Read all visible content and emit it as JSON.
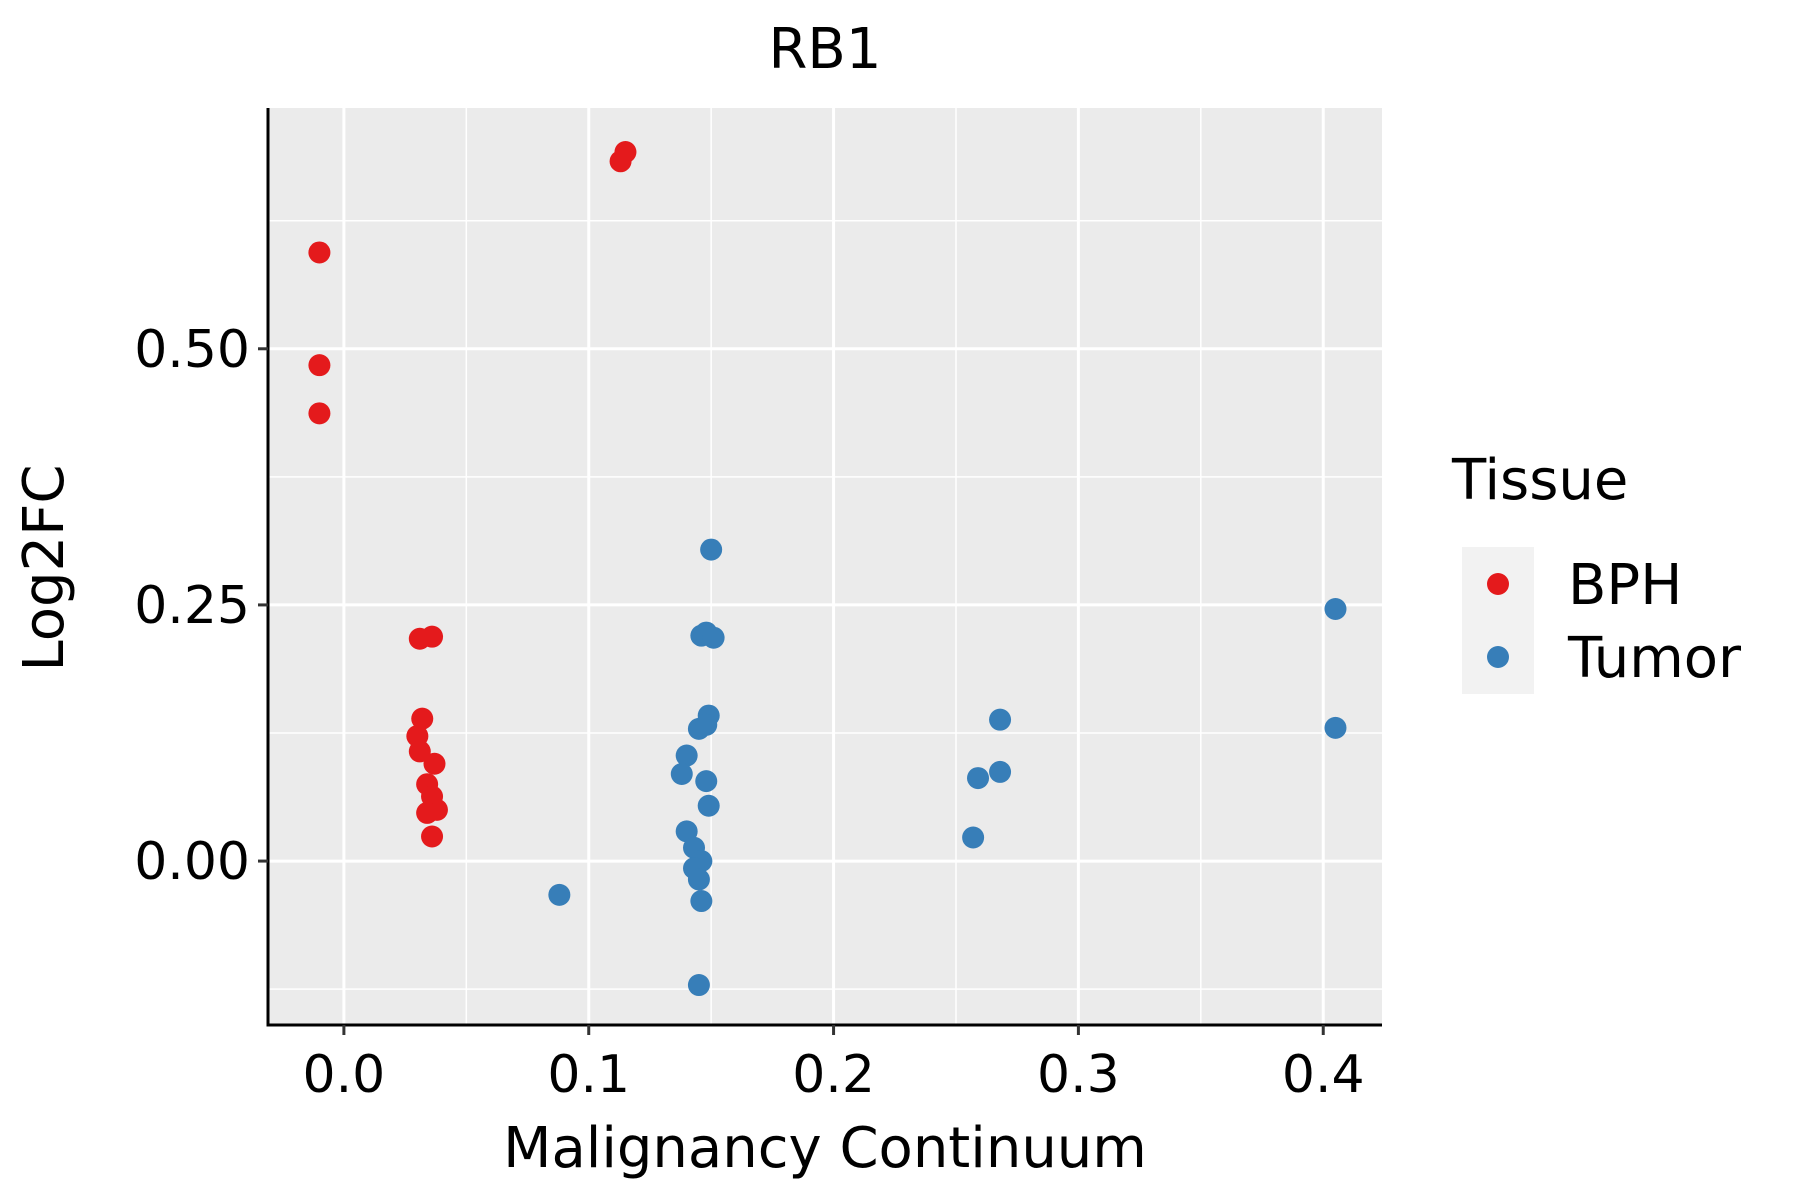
{
  "chart_data": {
    "type": "scatter",
    "title": "RB1",
    "xlabel": "Malignancy Continuum",
    "ylabel": "Log2FC",
    "xlim": [
      -0.031,
      0.424
    ],
    "ylim": [
      -0.16,
      0.735
    ],
    "x_ticks": [
      0.0,
      0.1,
      0.2,
      0.3,
      0.4
    ],
    "x_tick_labels": [
      "0.0",
      "0.1",
      "0.2",
      "0.3",
      "0.4"
    ],
    "y_ticks": [
      0.0,
      0.25,
      0.5
    ],
    "y_tick_labels": [
      "0.00",
      "0.25",
      "0.50"
    ],
    "grid": true,
    "legend": {
      "title": "Tissue",
      "position": "right"
    },
    "series": [
      {
        "name": "BPH",
        "color": "#E41A1C",
        "points": [
          [
            -0.01,
            0.594
          ],
          [
            -0.01,
            0.484
          ],
          [
            -0.01,
            0.437
          ],
          [
            0.115,
            0.692
          ],
          [
            0.113,
            0.683
          ],
          [
            0.031,
            0.217
          ],
          [
            0.036,
            0.219
          ],
          [
            0.032,
            0.139
          ],
          [
            0.03,
            0.122
          ],
          [
            0.031,
            0.107
          ],
          [
            0.037,
            0.095
          ],
          [
            0.034,
            0.075
          ],
          [
            0.036,
            0.063
          ],
          [
            0.038,
            0.05
          ],
          [
            0.034,
            0.047
          ],
          [
            0.036,
            0.024
          ]
        ]
      },
      {
        "name": "Tumor",
        "color": "#377EB8",
        "points": [
          [
            0.15,
            0.304
          ],
          [
            0.146,
            0.22
          ],
          [
            0.148,
            0.223
          ],
          [
            0.151,
            0.218
          ],
          [
            0.149,
            0.142
          ],
          [
            0.145,
            0.129
          ],
          [
            0.148,
            0.133
          ],
          [
            0.14,
            0.103
          ],
          [
            0.138,
            0.085
          ],
          [
            0.148,
            0.078
          ],
          [
            0.149,
            0.054
          ],
          [
            0.14,
            0.029
          ],
          [
            0.143,
            0.013
          ],
          [
            0.146,
            0.0
          ],
          [
            0.143,
            -0.007
          ],
          [
            0.145,
            -0.018
          ],
          [
            0.146,
            -0.039
          ],
          [
            0.145,
            -0.121
          ],
          [
            0.088,
            -0.033
          ],
          [
            0.268,
            0.138
          ],
          [
            0.268,
            0.087
          ],
          [
            0.259,
            0.081
          ],
          [
            0.257,
            0.023
          ],
          [
            0.405,
            0.246
          ],
          [
            0.405,
            0.13
          ]
        ]
      }
    ]
  }
}
